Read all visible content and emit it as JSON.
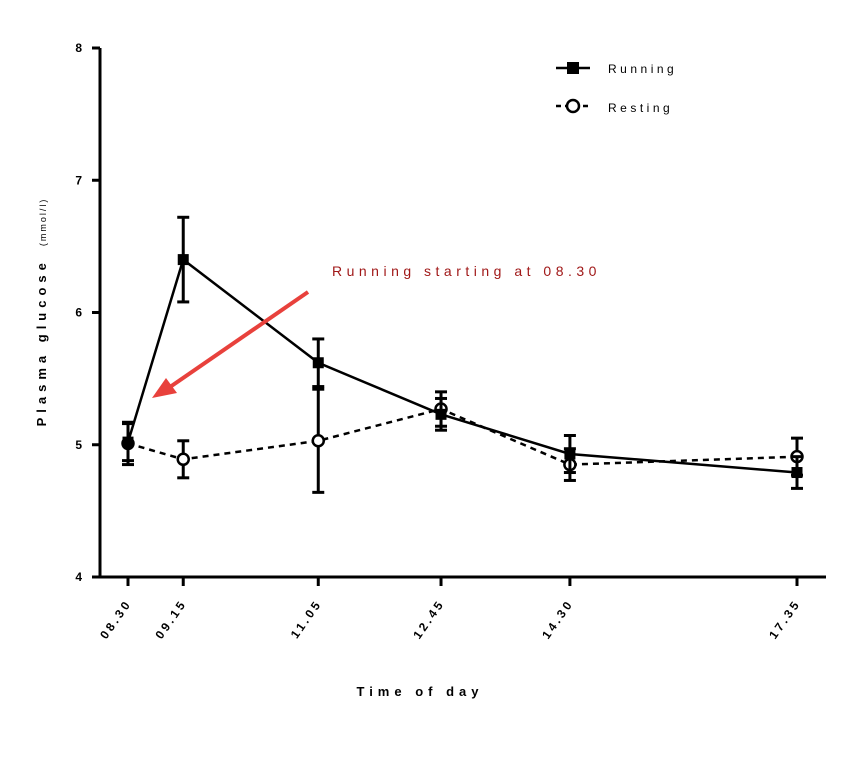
{
  "chart_data": {
    "type": "line",
    "xlabel": "Time of day",
    "ylabel": "Plasma glucose",
    "ylabel_unit": "(mmol/l)",
    "categories": [
      "08.30",
      "09.15",
      "11.05",
      "12.45",
      "14.30",
      "17.35"
    ],
    "x_hours": [
      8.5,
      9.25,
      11.0833,
      12.75,
      14.5,
      17.5833
    ],
    "ylim": [
      4,
      8
    ],
    "yticks": [
      4,
      5,
      6,
      7,
      8
    ],
    "grid": false,
    "legend_position": "top-right",
    "series": [
      {
        "name": "Running",
        "marker": "filled-square",
        "line": "solid",
        "values": [
          5.02,
          6.4,
          5.62,
          5.23,
          4.93,
          4.79
        ],
        "errors": [
          0.14,
          0.32,
          0.18,
          0.12,
          0.14,
          0.12
        ]
      },
      {
        "name": "Resting",
        "marker": "open-circle",
        "line": "dashed",
        "values": [
          5.01,
          4.89,
          5.03,
          5.27,
          4.85,
          4.91
        ],
        "errors": [
          0.16,
          0.14,
          0.39,
          0.13,
          0.12,
          0.14
        ]
      }
    ],
    "annotation": {
      "text": "Running starting at 08.30",
      "color": "#a01818",
      "arrow_color": "#e8413c",
      "points_to": "08.30"
    }
  }
}
